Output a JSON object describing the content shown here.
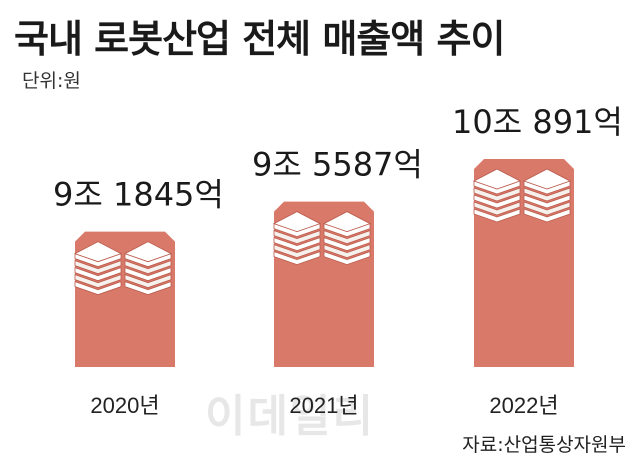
{
  "chart_data": {
    "type": "bar",
    "title": "국내 로봇산업 전체 매출액 추이",
    "unit_label": "단위:원",
    "categories": [
      "2020년",
      "2021년",
      "2022년"
    ],
    "values": [
      91845,
      95587,
      100891
    ],
    "value_labels": [
      "9조 1845억",
      "9조 5587억",
      "10조 891억"
    ],
    "source": "자료:산업통상자원부",
    "watermark": "이데일리",
    "bar_color": "#d9796a",
    "ylim": [
      75000,
      104000
    ]
  }
}
